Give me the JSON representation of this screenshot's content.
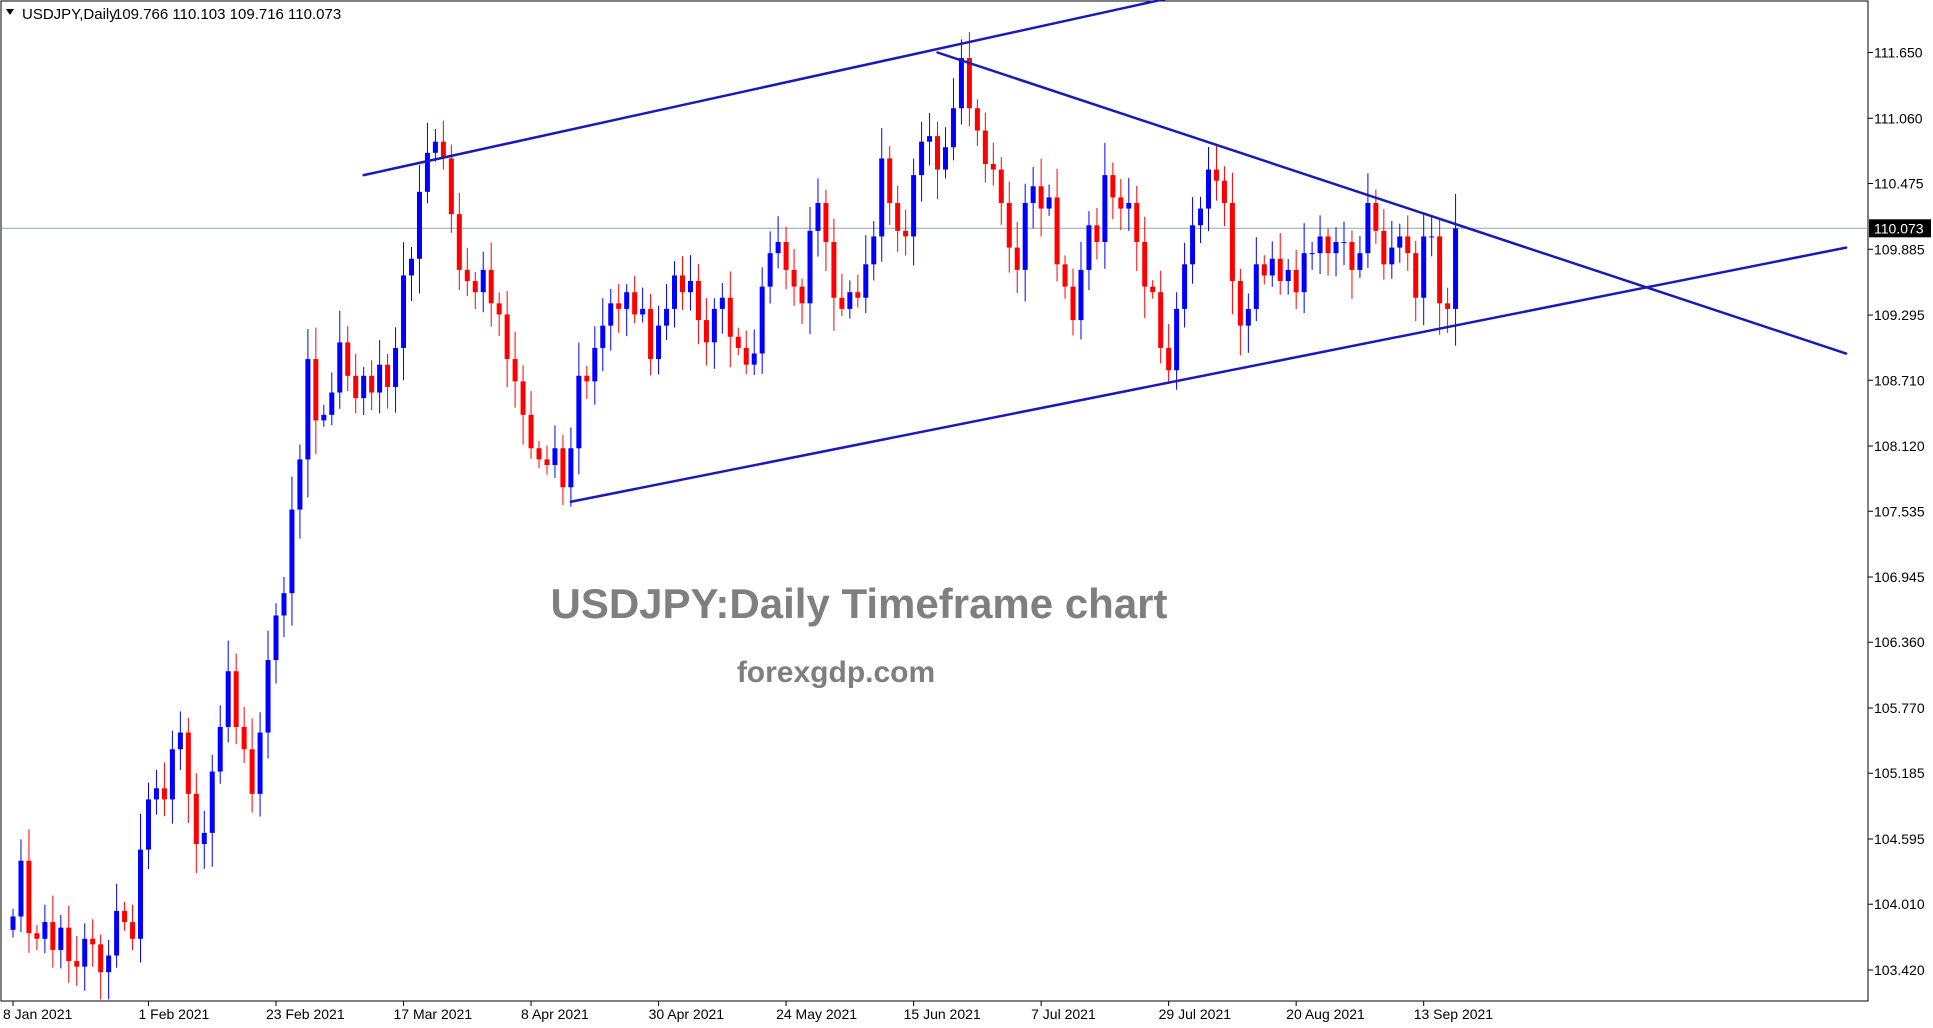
{
  "header": {
    "symbol_timeframe": "USDJPY,Daily",
    "ohlc": "109.766 110.103 109.716 110.073"
  },
  "watermark": {
    "title": "USDJPY:Daily Timeframe chart",
    "site": "forexgdp.com"
  },
  "colors": {
    "bull": "#0000ff",
    "bear": "#ff0000",
    "trendline": "#1a1ab8",
    "price_line": "#8fa7b3",
    "axis": "#000000",
    "watermark": "#7f7f7f"
  },
  "current_price": {
    "label": "110.073",
    "value": 110.073
  },
  "chart_data": {
    "type": "candlestick",
    "symbol": "USDJPY",
    "timeframe": "Daily",
    "ylim": [
      103.1,
      112.05
    ],
    "y_ticks": [
      "111.650",
      "111.060",
      "110.475",
      "109.885",
      "109.295",
      "108.710",
      "108.120",
      "107.535",
      "106.945",
      "106.360",
      "105.770",
      "105.185",
      "104.595",
      "104.010",
      "103.420"
    ],
    "x_ticks": [
      {
        "label": "8 Jan 2021",
        "bar": 0
      },
      {
        "label": "1 Feb 2021",
        "bar": 17
      },
      {
        "label": "23 Feb 2021",
        "bar": 33
      },
      {
        "label": "17 Mar 2021",
        "bar": 49
      },
      {
        "label": "8 Apr 2021",
        "bar": 65
      },
      {
        "label": "30 Apr 2021",
        "bar": 81
      },
      {
        "label": "24 May 2021",
        "bar": 97
      },
      {
        "label": "15 Jun 2021",
        "bar": 113
      },
      {
        "label": "7 Jul 2021",
        "bar": 129
      },
      {
        "label": "29 Jul 2021",
        "bar": 145
      },
      {
        "label": "20 Aug 2021",
        "bar": 161
      },
      {
        "label": "13 Sep 2021",
        "bar": 177
      }
    ],
    "closes": [
      103.9,
      104.4,
      103.75,
      103.7,
      103.85,
      103.6,
      103.8,
      103.5,
      103.45,
      103.7,
      103.65,
      103.4,
      103.55,
      103.95,
      103.85,
      103.7,
      104.5,
      104.95,
      105.05,
      104.95,
      105.4,
      105.55,
      105.0,
      104.55,
      104.65,
      105.2,
      105.6,
      106.1,
      105.6,
      105.4,
      105.0,
      105.55,
      106.2,
      106.6,
      106.8,
      107.55,
      108.0,
      108.9,
      108.35,
      108.4,
      108.6,
      109.05,
      108.75,
      108.55,
      108.75,
      108.6,
      108.85,
      108.65,
      109.0,
      109.65,
      109.8,
      110.4,
      110.75,
      110.85,
      110.7,
      110.2,
      109.7,
      109.6,
      109.5,
      109.7,
      109.4,
      109.3,
      108.9,
      108.7,
      108.4,
      108.1,
      108.0,
      107.95,
      108.1,
      107.75,
      108.1,
      108.75,
      108.7,
      109.0,
      109.2,
      109.4,
      109.35,
      109.5,
      109.3,
      109.35,
      108.9,
      109.2,
      109.35,
      109.65,
      109.5,
      109.6,
      109.25,
      109.05,
      109.35,
      109.45,
      109.1,
      109.0,
      108.85,
      108.95,
      109.55,
      109.85,
      109.95,
      109.7,
      109.55,
      109.4,
      110.05,
      110.3,
      109.95,
      109.45,
      109.35,
      109.5,
      109.45,
      109.75,
      110.0,
      110.7,
      110.3,
      110.05,
      110.0,
      110.55,
      110.85,
      110.9,
      110.6,
      110.8,
      111.15,
      111.6,
      111.15,
      110.95,
      110.65,
      110.6,
      110.3,
      109.9,
      109.7,
      110.3,
      110.45,
      110.25,
      110.35,
      109.75,
      109.55,
      109.25,
      109.7,
      110.1,
      109.95,
      110.55,
      110.35,
      110.25,
      110.3,
      109.95,
      109.55,
      109.5,
      109.0,
      108.8,
      109.35,
      109.75,
      110.1,
      110.25,
      110.6,
      110.5,
      110.3,
      109.6,
      109.2,
      109.35,
      109.75,
      109.65,
      109.8,
      109.6,
      109.7,
      109.5,
      109.85,
      109.85,
      110.0,
      109.85,
      109.95,
      109.95,
      109.7,
      109.85,
      110.3,
      110.05,
      109.75,
      109.9,
      110.0,
      109.85,
      109.45,
      110.0,
      110.0,
      109.4,
      109.35,
      110.073
    ],
    "trendlines": [
      {
        "name": "upper-channel",
        "from": {
          "bar": 44,
          "price": 110.55
        },
        "to": {
          "bar": 149,
          "price": 112.2
        }
      },
      {
        "name": "resistance-descending",
        "from": {
          "bar": 116,
          "price": 111.65
        },
        "to": {
          "bar": 230,
          "price": 108.95
        }
      },
      {
        "name": "support-ascending",
        "from": {
          "bar": 70,
          "price": 107.62
        },
        "to": {
          "bar": 230,
          "price": 109.9
        }
      }
    ]
  }
}
